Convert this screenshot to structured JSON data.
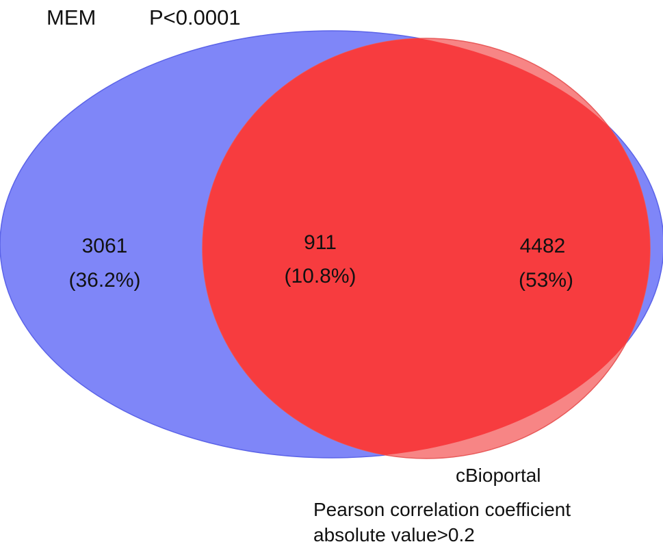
{
  "sets": {
    "left": {
      "name": "MEM",
      "criterion": "P<0.0001",
      "color": "#7f86f8"
    },
    "right": {
      "name": "cBioportal",
      "criterion_line1": "Pearson correlation coefficient",
      "criterion_line2": "absolute value>0.2",
      "color": "#f78585"
    }
  },
  "regions": {
    "left_only": {
      "count": "3061",
      "percent": "(36.2%)"
    },
    "intersection": {
      "count": "911",
      "percent": "(10.8%)",
      "color": "#f73c3f"
    },
    "right_only": {
      "count": "4482",
      "percent": "(53%)"
    }
  }
}
